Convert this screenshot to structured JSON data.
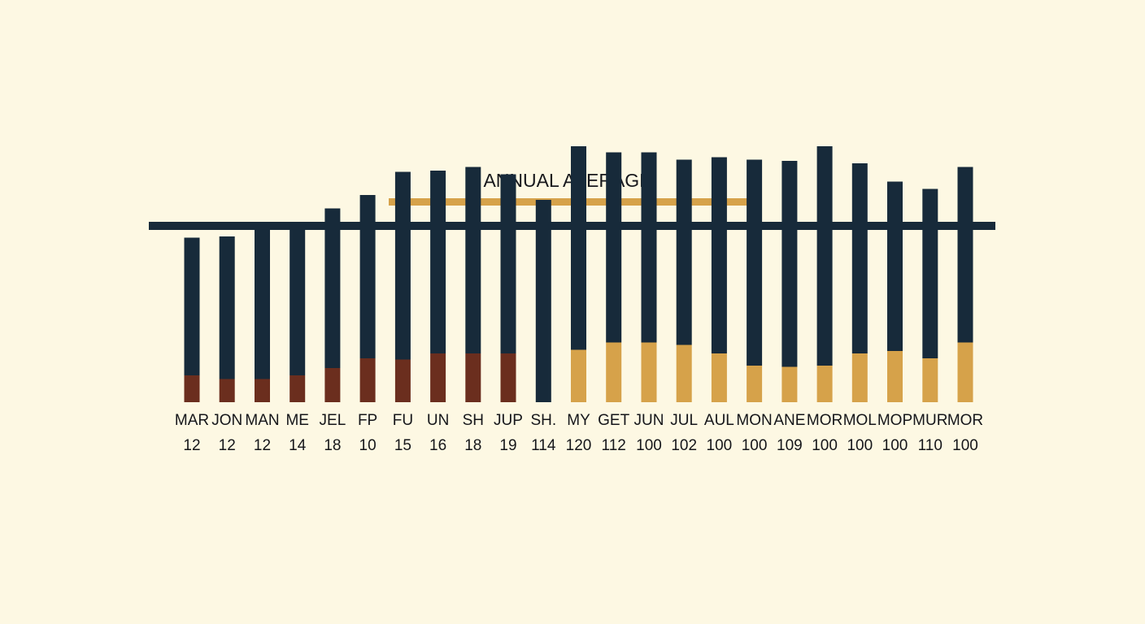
{
  "chart_data": {
    "type": "bar",
    "title": "ANNUAL AVERAGE",
    "categories": [
      "MAR",
      "JON",
      "MAN",
      "ME",
      "JEL",
      "FP",
      "FU",
      "UN",
      "SH",
      "JUP",
      "SH.",
      "MY",
      "GET",
      "JUN",
      "JUL",
      "AUL",
      "MON",
      "ANE",
      "MOR",
      "MOL",
      "MOP",
      "MUR",
      "MOR"
    ],
    "value_labels": [
      "12",
      "12",
      "12",
      "14",
      "18",
      "10",
      "15",
      "16",
      "18",
      "19",
      "114",
      "120",
      "112",
      "100",
      "102",
      "100",
      "100",
      "109",
      "100",
      "100",
      "100",
      "110",
      "100"
    ],
    "series": [
      {
        "values": [
          22,
          19,
          19,
          22,
          28,
          36,
          35,
          40,
          40,
          40,
          0,
          43,
          49,
          49,
          47,
          40,
          30,
          29,
          30,
          40,
          42,
          36,
          49
        ],
        "color": "#6b2e1e"
      },
      {
        "values": [
          113,
          117,
          123,
          124,
          131,
          134,
          154,
          150,
          153,
          147,
          166,
          167,
          156,
          156,
          152,
          161,
          169,
          169,
          180,
          156,
          139,
          139,
          144
        ],
        "color": "#172a3a"
      }
    ],
    "segment_colors": [
      "#6b2e1e",
      "#6b2e1e",
      "#6b2e1e",
      "#6b2e1e",
      "#6b2e1e",
      "#6b2e1e",
      "#6b2e1e",
      "#6b2e1e",
      "#6b2e1e",
      "#6b2e1e",
      "#d6a24a",
      "#d6a24a",
      "#d6a24a",
      "#d6a24a",
      "#d6a24a",
      "#d6a24a",
      "#d6a24a",
      "#d6a24a",
      "#d6a24a",
      "#d6a24a",
      "#d6a24a",
      "#d6a24a",
      "#d6a24a"
    ],
    "ylim": [
      0,
      200
    ],
    "grid": false,
    "legend": "none",
    "colors": {
      "background": "#fdf8e3",
      "dark": "#172a3a",
      "gold": "#d6a24a",
      "brown": "#6b2e1e",
      "text": "#15161a"
    }
  }
}
